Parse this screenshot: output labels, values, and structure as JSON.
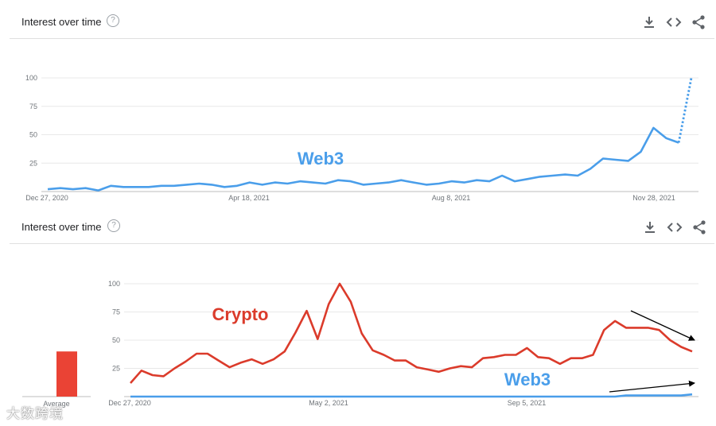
{
  "panels": [
    {
      "header": {
        "title": "Interest over time",
        "help_icon": "?"
      },
      "toolbar": {
        "icons": [
          "download-icon",
          "embed-icon",
          "share-icon"
        ]
      }
    },
    {
      "header": {
        "title": "Interest over time",
        "help_icon": "?"
      },
      "toolbar": {
        "icons": [
          "download-icon",
          "embed-icon",
          "share-icon"
        ]
      }
    }
  ],
  "average_bar": {
    "label": "Average",
    "value": 40,
    "color": "#ea4335"
  },
  "watermark": "大数跨境",
  "colors": {
    "web3": "#4a9eea",
    "crypto": "#db3b2b",
    "grid": "#e8e8e8",
    "axis_text": "#70757a"
  },
  "chart_data": [
    {
      "type": "line",
      "ylim": [
        0,
        100
      ],
      "yticks": [
        25,
        50,
        75,
        100
      ],
      "xtick_labels": [
        "Dec 27, 2020",
        "Apr 18, 2021",
        "Aug 8, 2021",
        "Nov 28, 2021"
      ],
      "annotation": "Web3",
      "series": [
        {
          "name": "Web3",
          "color": "#4a9eea",
          "values": [
            2,
            3,
            2,
            3,
            1,
            5,
            4,
            4,
            4,
            5,
            5,
            6,
            7,
            6,
            4,
            5,
            8,
            6,
            8,
            7,
            9,
            8,
            7,
            10,
            9,
            6,
            7,
            8,
            10,
            8,
            6,
            7,
            9,
            8,
            10,
            9,
            14,
            9,
            11,
            13,
            14,
            15,
            14,
            20,
            29,
            28,
            27,
            35,
            56,
            47,
            43,
            100
          ],
          "dashed_last_segment": true
        }
      ]
    },
    {
      "type": "line",
      "ylim": [
        0,
        100
      ],
      "yticks": [
        25,
        50,
        75,
        100
      ],
      "xtick_labels": [
        "Dec 27, 2020",
        "May 2, 2021",
        "Sep 5, 2021"
      ],
      "annotations": [
        "Crypto",
        "Web3"
      ],
      "series": [
        {
          "name": "Crypto",
          "color": "#db3b2b",
          "values": [
            12,
            23,
            19,
            18,
            25,
            31,
            38,
            38,
            32,
            26,
            30,
            33,
            29,
            33,
            40,
            57,
            76,
            51,
            82,
            100,
            84,
            56,
            41,
            37,
            32,
            32,
            26,
            24,
            22,
            25,
            27,
            26,
            34,
            35,
            37,
            37,
            43,
            35,
            34,
            29,
            34,
            34,
            37,
            59,
            67,
            61,
            61,
            61,
            59,
            50,
            44,
            40
          ]
        },
        {
          "name": "Web3",
          "color": "#4a9eea",
          "values": [
            0,
            0,
            0,
            0,
            0,
            0,
            0,
            0,
            0,
            0,
            0,
            0,
            0,
            0,
            0,
            0,
            0,
            0,
            0,
            0,
            0,
            0,
            0,
            0,
            0,
            0,
            0,
            0,
            0,
            0,
            0,
            0,
            0,
            0,
            0,
            0,
            0,
            0,
            0,
            0,
            0,
            0,
            0,
            0,
            0,
            1,
            1,
            1,
            1,
            1,
            1,
            2
          ]
        }
      ]
    }
  ]
}
